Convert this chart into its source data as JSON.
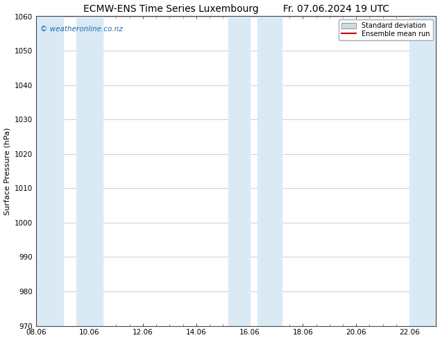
{
  "title_left": "ECMW-ENS Time Series Luxembourg",
  "title_right": "Fr. 07.06.2024 19 UTC",
  "ylabel": "Surface Pressure (hPa)",
  "ylim": [
    970,
    1060
  ],
  "yticks": [
    970,
    980,
    990,
    1000,
    1010,
    1020,
    1030,
    1040,
    1050,
    1060
  ],
  "xtick_labels": [
    "08.06",
    "10.06",
    "12.06",
    "14.06",
    "16.06",
    "18.06",
    "20.06",
    "22.06"
  ],
  "xtick_positions": [
    0,
    2,
    4,
    6,
    8,
    10,
    12,
    14
  ],
  "xlim": [
    0,
    15
  ],
  "shaded_bands": [
    {
      "x_start": 0.0,
      "x_end": 1.0
    },
    {
      "x_start": 1.5,
      "x_end": 2.5
    },
    {
      "x_start": 7.5,
      "x_end": 9.0
    },
    {
      "x_start": 14.0,
      "x_end": 15.0
    }
  ],
  "shade_color": "#daeaf5",
  "watermark_text": "© weatheronline.co.nz",
  "watermark_color": "#1a6bb5",
  "bg_color": "#ffffff",
  "legend_std_label": "Standard deviation",
  "legend_mean_label": "Ensemble mean run",
  "legend_std_color": "#ccdee8",
  "legend_mean_color": "#cc0000",
  "title_fontsize": 10,
  "axis_label_fontsize": 8,
  "tick_fontsize": 7.5
}
